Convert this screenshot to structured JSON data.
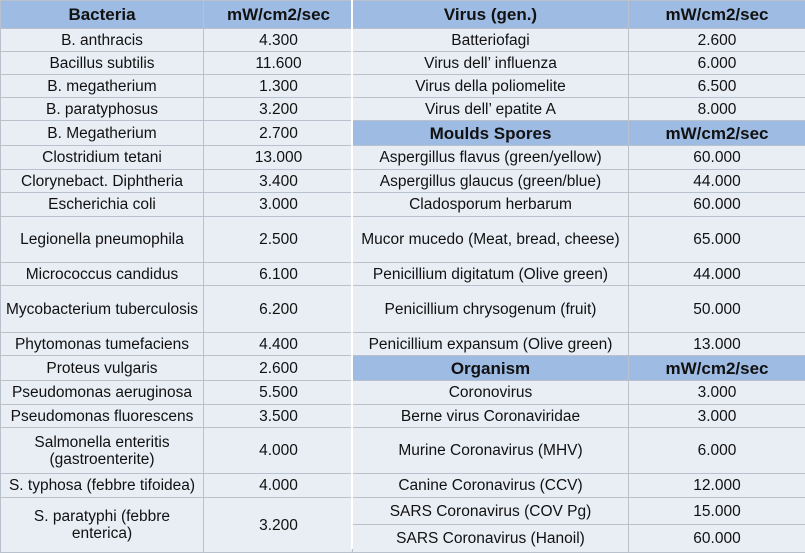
{
  "bacteria": {
    "header": {
      "name": "Bacteria",
      "unit": "mW/cm2/sec"
    },
    "rows": [
      {
        "name": "B. anthracis",
        "value": "4.300"
      },
      {
        "name": "Bacillus subtilis",
        "value": "11.600"
      },
      {
        "name": "B. megatherium",
        "value": "1.300"
      },
      {
        "name": "B. paratyphosus",
        "value": "3.200"
      },
      {
        "name": "B. Megatherium",
        "value": "2.700"
      },
      {
        "name": "Clostridium tetani",
        "value": "13.000"
      },
      {
        "name": "Clorynebact. Diphtheria",
        "value": "3.400"
      },
      {
        "name": "Escherichia coli",
        "value": "3.000"
      },
      {
        "name": "Legionella pneumophila",
        "value": "2.500"
      },
      {
        "name": "Micrococcus candidus",
        "value": "6.100"
      },
      {
        "name": "Mycobacterium tuberculosis",
        "value": "6.200"
      },
      {
        "name": "Phytomonas tumefaciens",
        "value": "4.400"
      },
      {
        "name": "Proteus vulgaris",
        "value": "2.600"
      },
      {
        "name": "Pseudomonas aeruginosa",
        "value": "5.500"
      },
      {
        "name": "Pseudomonas fluorescens",
        "value": "3.500"
      },
      {
        "name": "Salmonella enteritis (gastroenterite)",
        "value": "4.000"
      },
      {
        "name": "S. typhosa (febbre tifoidea)",
        "value": "4.000"
      },
      {
        "name": "S. paratyphi (febbre enterica)",
        "value": "3.200"
      }
    ]
  },
  "virus": {
    "header": {
      "name": "Virus (gen.)",
      "unit": "mW/cm2/sec"
    },
    "rows": [
      {
        "name": "Batteriofagi",
        "value": "2.600"
      },
      {
        "name": "Virus dell’ influenza",
        "value": "6.000"
      },
      {
        "name": "Virus della poliomelite",
        "value": "6.500"
      },
      {
        "name": "Virus dell’ epatite A",
        "value": "8.000"
      }
    ]
  },
  "moulds": {
    "header": {
      "name": "Moulds Spores",
      "unit": "mW/cm2/sec"
    },
    "rows": [
      {
        "name": "Aspergillus flavus (green/yellow)",
        "value": "60.000"
      },
      {
        "name": "Aspergillus glaucus (green/blue)",
        "value": "44.000"
      },
      {
        "name": "Cladosporum herbarum",
        "value": "60.000"
      },
      {
        "name": "Mucor mucedo (Meat, bread, cheese)",
        "value": "65.000"
      },
      {
        "name": "Penicillium digitatum (Olive green)",
        "value": "44.000"
      },
      {
        "name": "Penicillium chrysogenum (fruit)",
        "value": "50.000"
      },
      {
        "name": "Penicillium expansum (Olive green)",
        "value": "13.000"
      }
    ]
  },
  "organism": {
    "header": {
      "name": "Organism",
      "unit": "mW/cm2/sec"
    },
    "rows": [
      {
        "name": "Coronovirus",
        "value": "3.000"
      },
      {
        "name": "Berne virus Coronaviridae",
        "value": "3.000"
      },
      {
        "name": "Murine Coronavirus (MHV)",
        "value": "6.000"
      },
      {
        "name": "Canine Coronavirus (CCV)",
        "value": "12.000"
      },
      {
        "name": "SARS Coronavirus (COV Pg)",
        "value": "15.000"
      },
      {
        "name": "SARS Coronavirus (Hanoil)",
        "value": "60.000"
      }
    ]
  }
}
